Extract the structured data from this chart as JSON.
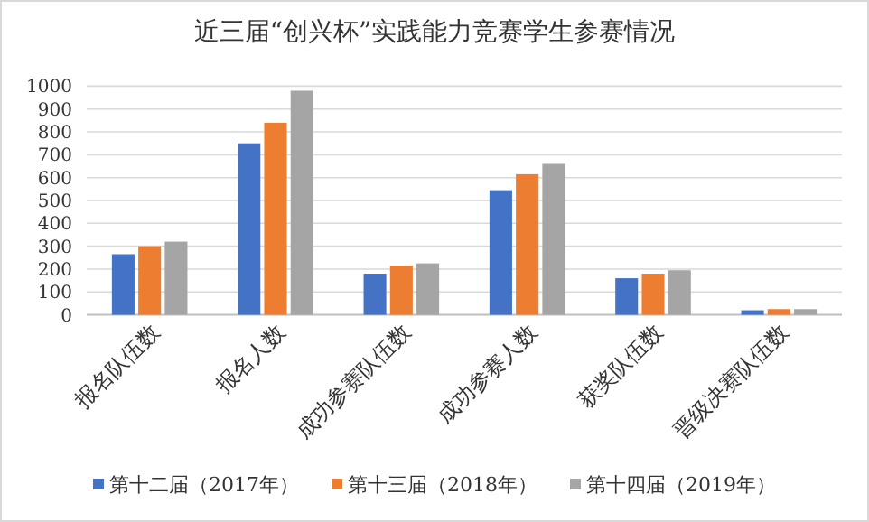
{
  "chart_data": {
    "type": "bar",
    "title": "近三届“创兴杯”实践能力竞赛学生参赛情况",
    "categories": [
      "报名队伍数",
      "报名人数",
      "成功参赛队伍数",
      "成功参赛人数",
      "获奖队伍数",
      "晋级决赛队伍数"
    ],
    "series": [
      {
        "name": "第十二届（2017年）",
        "color": "#4472c4",
        "values": [
          265,
          750,
          180,
          545,
          160,
          20
        ]
      },
      {
        "name": "第十三届（2018年）",
        "color": "#ed7d31",
        "values": [
          300,
          840,
          215,
          615,
          180,
          25
        ]
      },
      {
        "name": "第十四届（2019年）",
        "color": "#a5a5a5",
        "values": [
          320,
          980,
          225,
          660,
          195,
          25
        ]
      }
    ],
    "ylim": [
      0,
      1000
    ],
    "yticks": [
      0,
      100,
      200,
      300,
      400,
      500,
      600,
      700,
      800,
      900,
      1000
    ],
    "grid": "y",
    "legend": "bottom"
  }
}
